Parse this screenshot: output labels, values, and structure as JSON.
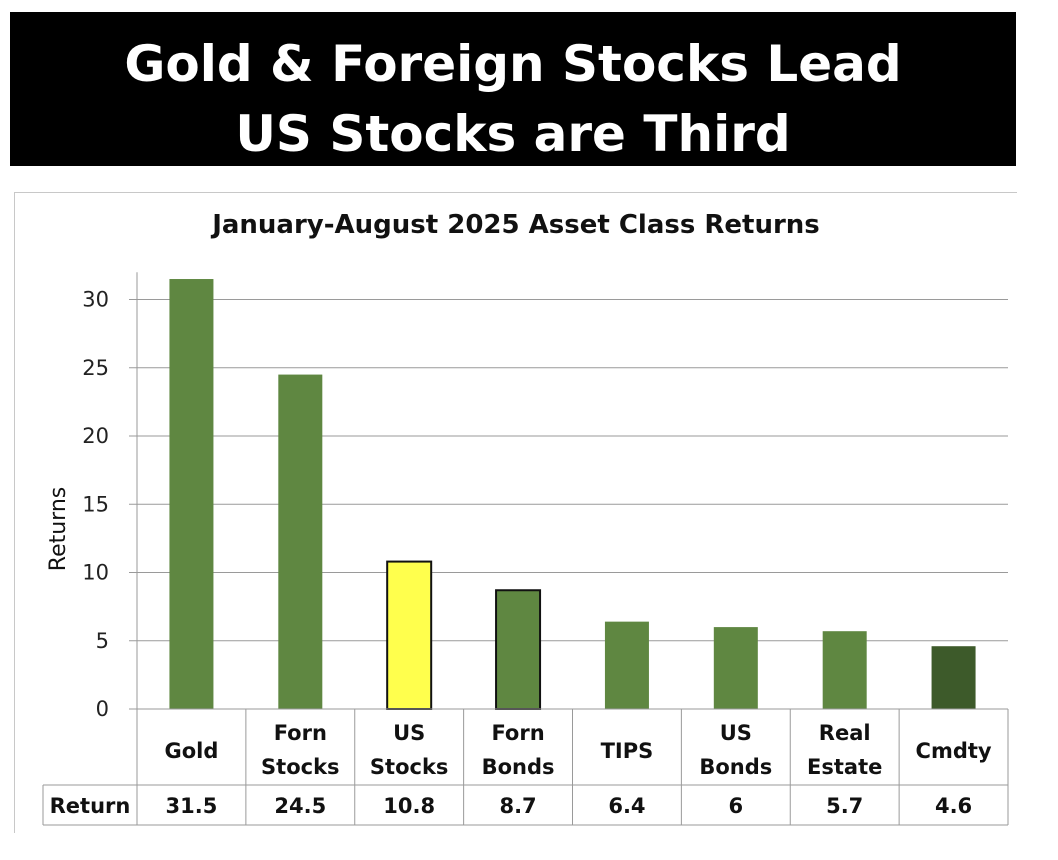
{
  "banner": {
    "line1": "Gold & Foreign Stocks Lead",
    "line2": "US Stocks are Third"
  },
  "chart_data": {
    "type": "bar",
    "title": "January-August  2025 Asset Class Returns",
    "ylabel": "Returns",
    "xlabel": "",
    "ylim": [
      0,
      32
    ],
    "yticks": [
      0,
      5,
      10,
      15,
      20,
      25,
      30
    ],
    "grid": true,
    "categories": [
      [
        "Gold"
      ],
      [
        "Forn",
        "Stocks"
      ],
      [
        "US",
        "Stocks"
      ],
      [
        "Forn",
        "Bonds"
      ],
      [
        "TIPS"
      ],
      [
        "US",
        "Bonds"
      ],
      [
        "Real",
        "Estate"
      ],
      [
        "Cmdty"
      ]
    ],
    "values": [
      31.5,
      24.5,
      10.8,
      8.7,
      6.4,
      6,
      5.7,
      4.6
    ],
    "value_labels": [
      "31.5",
      "24.5",
      "10.8",
      "8.7",
      "6.4",
      "6",
      "5.7",
      "4.6"
    ],
    "table_row_label": "Return",
    "colors": [
      "#5f8741",
      "#5f8741",
      "#ffff4d",
      "#5f8741",
      "#5f8741",
      "#5f8741",
      "#5f8741",
      "#3d5a2a"
    ],
    "outlined": [
      false,
      false,
      true,
      true,
      false,
      false,
      false,
      false
    ]
  }
}
